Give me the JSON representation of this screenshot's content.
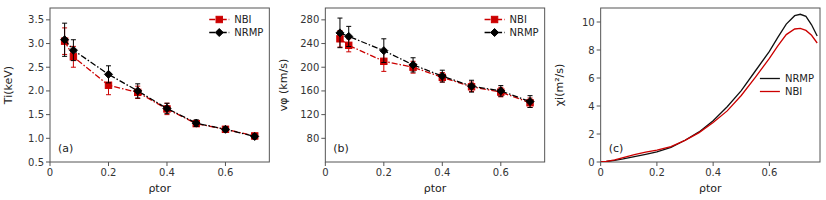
{
  "chart_data": [
    {
      "type": "line",
      "x_label": "ρtor",
      "y_label": "Ti(keV)",
      "annotations": [
        "(a)"
      ],
      "x": [
        0.05,
        0.08,
        0.2,
        0.3,
        0.4,
        0.5,
        0.6,
        0.7
      ],
      "series": [
        {
          "name": "NBI",
          "color": "#cc0000",
          "marker": "square",
          "line_style": "dashdot",
          "values": [
            3.05,
            2.72,
            2.12,
            1.97,
            1.62,
            1.31,
            1.19,
            1.05
          ],
          "yerr": [
            0.28,
            0.22,
            0.2,
            0.13,
            0.12,
            0.06,
            0.06,
            0.05
          ]
        },
        {
          "name": "NRMP",
          "color": "#000000",
          "marker": "diamond",
          "line_style": "dashdot",
          "values": [
            3.08,
            2.86,
            2.35,
            2.0,
            1.63,
            1.32,
            1.19,
            1.04
          ],
          "yerr": [
            0.35,
            0.22,
            0.18,
            0.15,
            0.11,
            0.07,
            0.05,
            0.05
          ]
        }
      ],
      "xlim": [
        0.0,
        0.75
      ],
      "xticks": [
        0,
        0.2,
        0.4,
        0.6
      ],
      "ylim": [
        0.5,
        3.75
      ],
      "yticks": [
        0.5,
        {
          "value": 1.0,
          "label": "1.0"
        },
        1.5,
        {
          "value": 2.0,
          "label": "2.0"
        },
        2.5,
        {
          "value": 3.0,
          "label": "3.0"
        },
        3.5
      ],
      "grid": false,
      "legend": "upper right"
    },
    {
      "type": "line",
      "x_label": "ρtor",
      "y_label": "vφ (km/s)",
      "annotations": [
        "(b)"
      ],
      "x": [
        0.05,
        0.08,
        0.2,
        0.3,
        0.4,
        0.5,
        0.6,
        0.7
      ],
      "series": [
        {
          "name": "NBI",
          "color": "#cc0000",
          "marker": "square",
          "line_style": "dashdot",
          "values": [
            248,
            237,
            210,
            200,
            183,
            167,
            158,
            140
          ],
          "yerr": [
            14,
            11,
            17,
            10,
            8,
            8,
            8,
            8
          ]
        },
        {
          "name": "NRMP",
          "color": "#000000",
          "marker": "diamond",
          "line_style": "dashdot",
          "values": [
            258,
            252,
            228,
            204,
            185,
            168,
            160,
            142
          ],
          "yerr": [
            25,
            17,
            20,
            12,
            10,
            10,
            9,
            10
          ]
        }
      ],
      "xlim": [
        0.0,
        0.75
      ],
      "xticks": [
        0,
        0.2,
        0.4,
        0.6
      ],
      "ylim": [
        40,
        300
      ],
      "yticks": [
        80,
        120,
        160,
        200,
        240,
        280
      ],
      "grid": false,
      "legend": "upper right"
    },
    {
      "type": "line",
      "x_label": "ρtor",
      "y_label": "χi(m²/s)",
      "annotations": [
        "(c)"
      ],
      "x": [
        0.0,
        0.02,
        0.05,
        0.08,
        0.12,
        0.16,
        0.2,
        0.25,
        0.3,
        0.35,
        0.4,
        0.45,
        0.5,
        0.55,
        0.6,
        0.63,
        0.66,
        0.69,
        0.71,
        0.73,
        0.75,
        0.77
      ],
      "series": [
        {
          "name": "NRMP",
          "color": "#111111",
          "line_style": "solid",
          "values": [
            0.0,
            0.04,
            0.12,
            0.22,
            0.38,
            0.55,
            0.72,
            1.05,
            1.55,
            2.15,
            2.95,
            3.95,
            5.1,
            6.5,
            7.9,
            8.9,
            9.85,
            10.45,
            10.55,
            10.4,
            9.8,
            9.0
          ]
        },
        {
          "name": "NBI",
          "color": "#cc0000",
          "line_style": "solid",
          "values": [
            0.0,
            0.04,
            0.15,
            0.32,
            0.52,
            0.7,
            0.85,
            1.1,
            1.55,
            2.1,
            2.82,
            3.65,
            4.75,
            6.05,
            7.4,
            8.3,
            9.1,
            9.5,
            9.55,
            9.4,
            9.05,
            8.5
          ]
        }
      ],
      "xlim": [
        0.0,
        0.78
      ],
      "xticks": [
        0,
        0.2,
        0.4,
        0.6
      ],
      "ylim": [
        0,
        11
      ],
      "yticks": [
        0,
        2,
        4,
        6,
        8,
        10
      ],
      "grid": false,
      "legend": "center right"
    }
  ]
}
